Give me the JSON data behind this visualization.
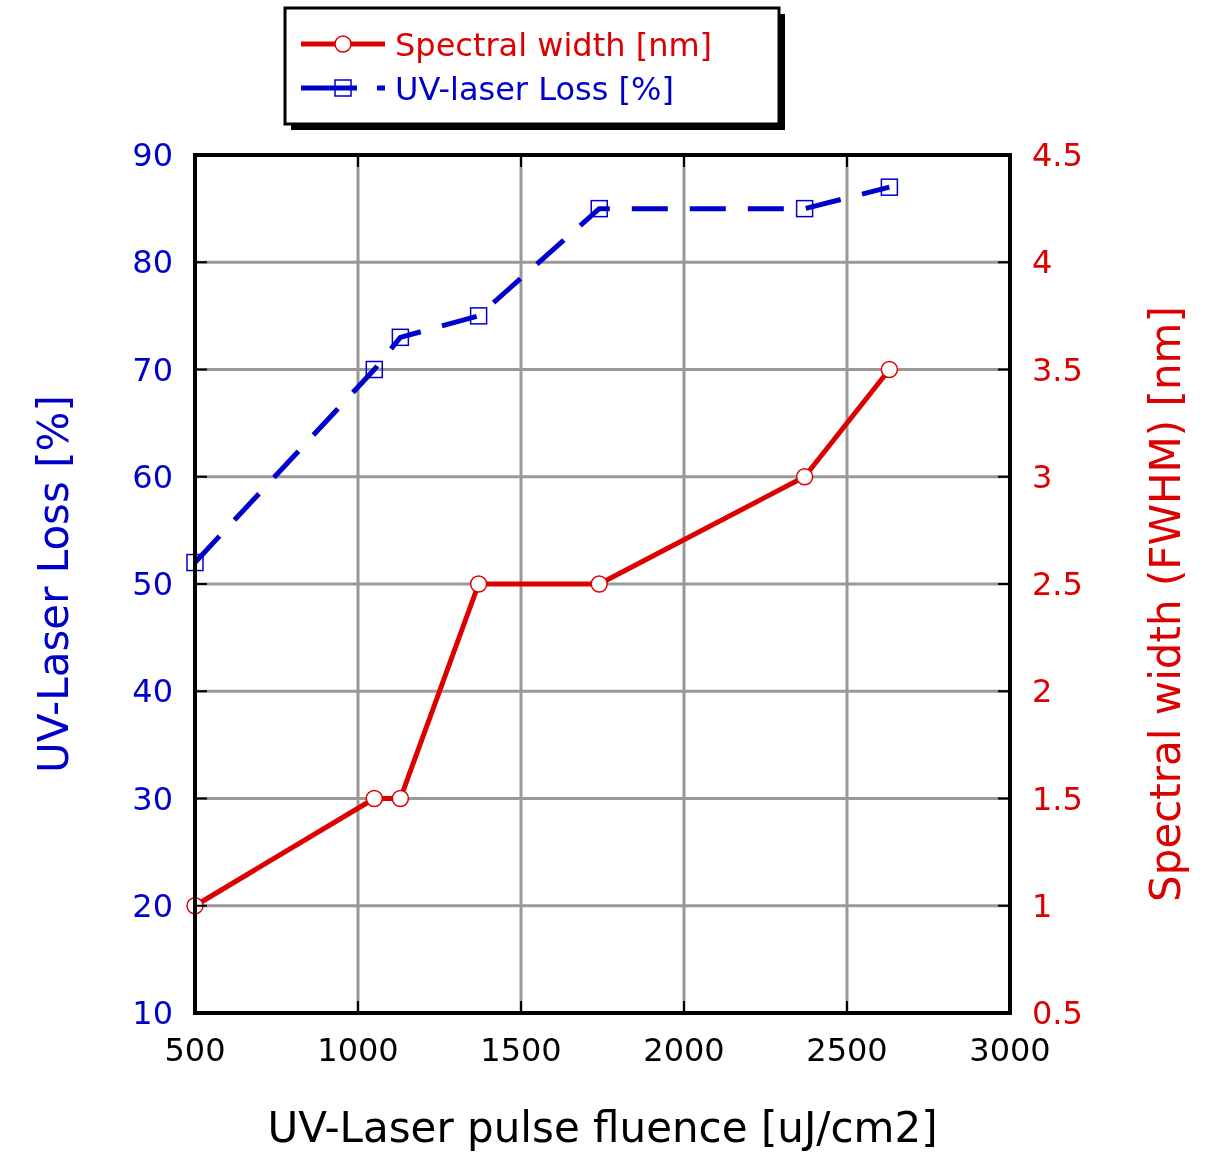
{
  "chart_data": {
    "type": "line",
    "xlabel": "UV-Laser pulse fluence [uJ/cm2]",
    "ylabel": "UV-Laser Loss [%]",
    "y2label": "Spectral width (FWHM) [nm]",
    "x": [
      500,
      1050,
      1130,
      1370,
      1740,
      2370,
      2630
    ],
    "series": [
      {
        "name": "Spectral width [nm]",
        "color": "#dd0000",
        "axis": "y2",
        "marker": "circle",
        "line_style": "solid",
        "values": [
          1,
          1.5,
          1.5,
          2.5,
          2.5,
          3,
          3.5
        ]
      },
      {
        "name": "UV-laser Loss [%]",
        "color": "#0000cc",
        "marker": "square",
        "line_style": "dashed",
        "values": [
          52,
          70,
          73,
          75,
          85,
          85,
          87
        ]
      }
    ],
    "xlim": [
      500,
      3000
    ],
    "xticks": [
      500,
      1000,
      1500,
      2000,
      2500,
      3000
    ],
    "ylim": [
      10,
      90
    ],
    "yticks": [
      10,
      20,
      30,
      40,
      50,
      60,
      70,
      80,
      90
    ],
    "y2lim": [
      0.5,
      4.5
    ],
    "y2ticks": [
      0.5,
      1,
      1.5,
      2,
      2.5,
      3,
      3.5,
      4,
      4.5
    ],
    "grid": true,
    "legend": "top"
  }
}
